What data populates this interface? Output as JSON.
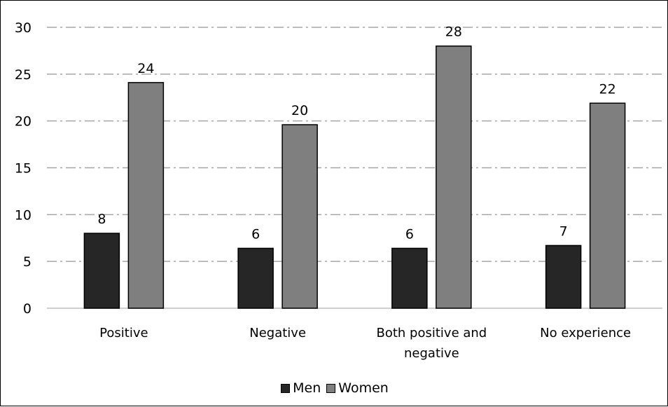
{
  "chart_data": {
    "type": "bar",
    "categories": [
      [
        "Positive"
      ],
      [
        "Negative"
      ],
      [
        "Both positive and",
        "negative"
      ],
      [
        "No experience"
      ]
    ],
    "series": [
      {
        "name": "Men",
        "values": [
          8,
          6.4,
          6.4,
          6.7
        ],
        "labels": [
          "8",
          "6",
          "6",
          "7"
        ],
        "color": "#262626"
      },
      {
        "name": "Women",
        "values": [
          24.1,
          19.6,
          28,
          21.9
        ],
        "labels": [
          "24",
          "20",
          "28",
          "22"
        ],
        "color": "#7f7f7f"
      }
    ],
    "yticks": [
      "0",
      "5",
      "10",
      "15",
      "20",
      "25",
      "30"
    ],
    "ylim": [
      0,
      30
    ],
    "grid": true,
    "legend": "bottom"
  }
}
